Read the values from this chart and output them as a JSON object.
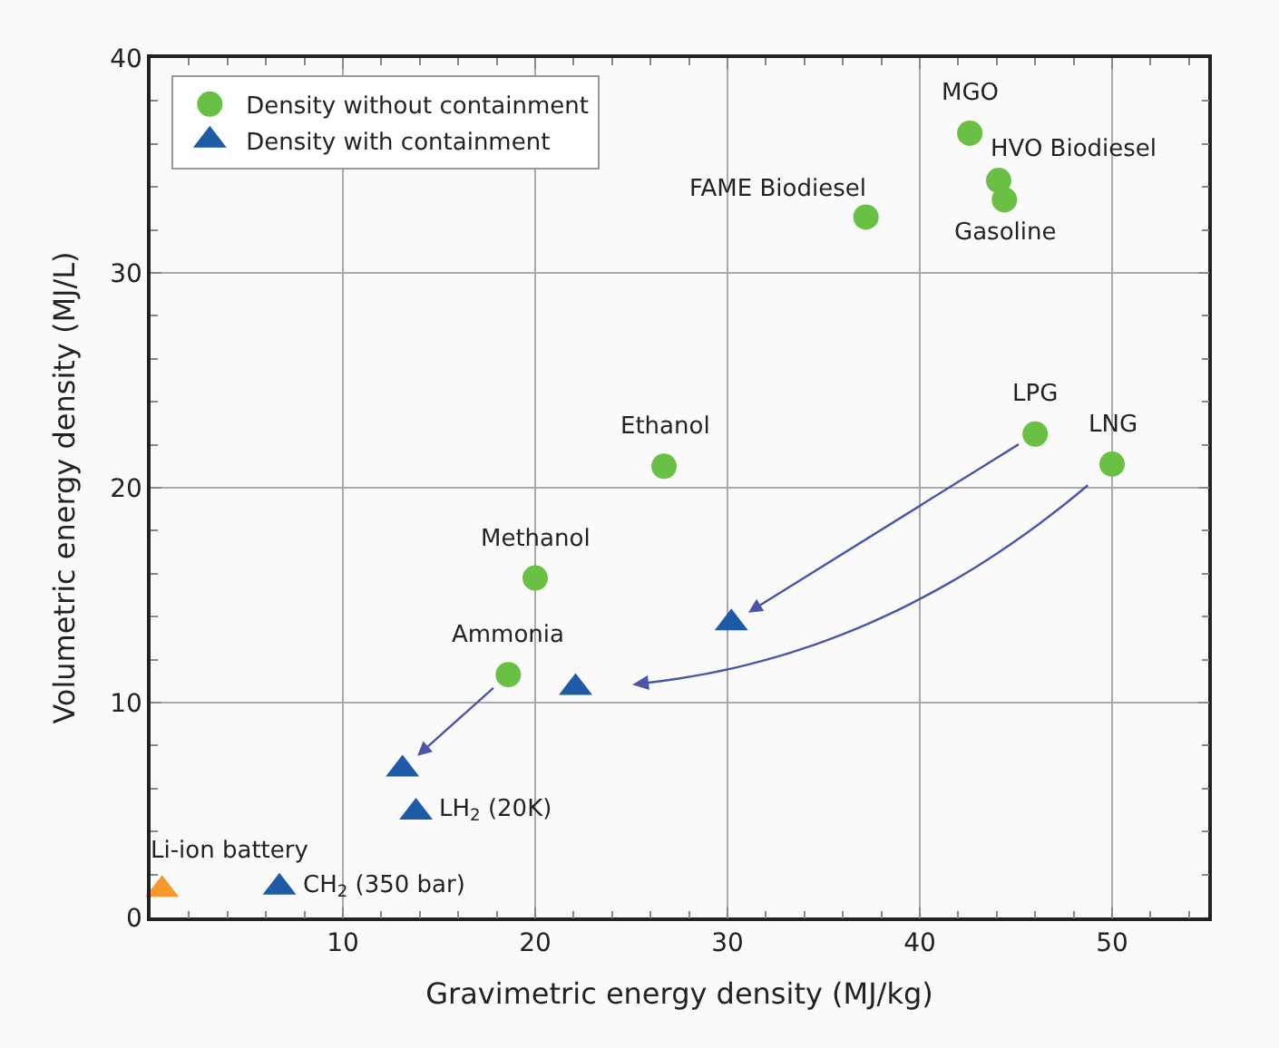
{
  "chart_data": {
    "type": "scatter",
    "xlabel": "Gravimetric energy density (MJ/kg)",
    "ylabel": "Volumetric energy density (MJ/L)",
    "xlim": [
      0,
      55
    ],
    "xticks": [
      10,
      20,
      30,
      40,
      50
    ],
    "ylim": [
      0,
      40
    ],
    "yticks": [
      0,
      10,
      20,
      30,
      40
    ],
    "grid": true,
    "legend": "top left",
    "series": [
      {
        "name": "Density without containment",
        "marker": "circle",
        "color": "#6abf45",
        "x": [
          42.6,
          44.1,
          44.4,
          37.2,
          46.0,
          50.0,
          26.7,
          20.0,
          18.6
        ],
        "values": [
          36.5,
          34.3,
          33.4,
          32.6,
          22.5,
          21.1,
          21.0,
          15.8,
          11.3
        ]
      },
      {
        "name": "Density with containment",
        "marker": "triangle",
        "colors": [
          "#1f5aa6",
          "#1f5aa6",
          "#1f5aa6",
          "#1f5aa6",
          "#1f5aa6",
          "#f39a2b"
        ],
        "x": [
          30.2,
          22.1,
          13.1,
          13.8,
          6.7,
          0.6
        ],
        "values": [
          13.7,
          10.7,
          6.9,
          4.9,
          1.4,
          1.3
        ]
      }
    ],
    "annotations": [
      {
        "text": "MGO",
        "x": 42.6,
        "y": 36.5
      },
      {
        "text": "HVO Biodiesel",
        "x": 44.1,
        "y": 34.3
      },
      {
        "text": "Gasoline",
        "x": 44.4,
        "y": 33.4
      },
      {
        "text": "FAME Biodiesel",
        "x": 37.2,
        "y": 32.6
      },
      {
        "text": "LPG",
        "x": 46.0,
        "y": 22.5
      },
      {
        "text": "LNG",
        "x": 50.0,
        "y": 21.1
      },
      {
        "text": "Ethanol",
        "x": 26.7,
        "y": 21.0
      },
      {
        "text": "Methanol",
        "x": 20.0,
        "y": 15.8
      },
      {
        "text": "Ammonia",
        "x": 18.6,
        "y": 11.3
      },
      {
        "text": "LH$_{2}$ (20K)",
        "x": 13.8,
        "y": 4.9
      },
      {
        "text": "CH$_{2}$ (350 bar)",
        "x": 6.7,
        "y": 1.4
      },
      {
        "text": "Li-ion battery",
        "x": 0.6,
        "y": 1.3
      }
    ]
  }
}
